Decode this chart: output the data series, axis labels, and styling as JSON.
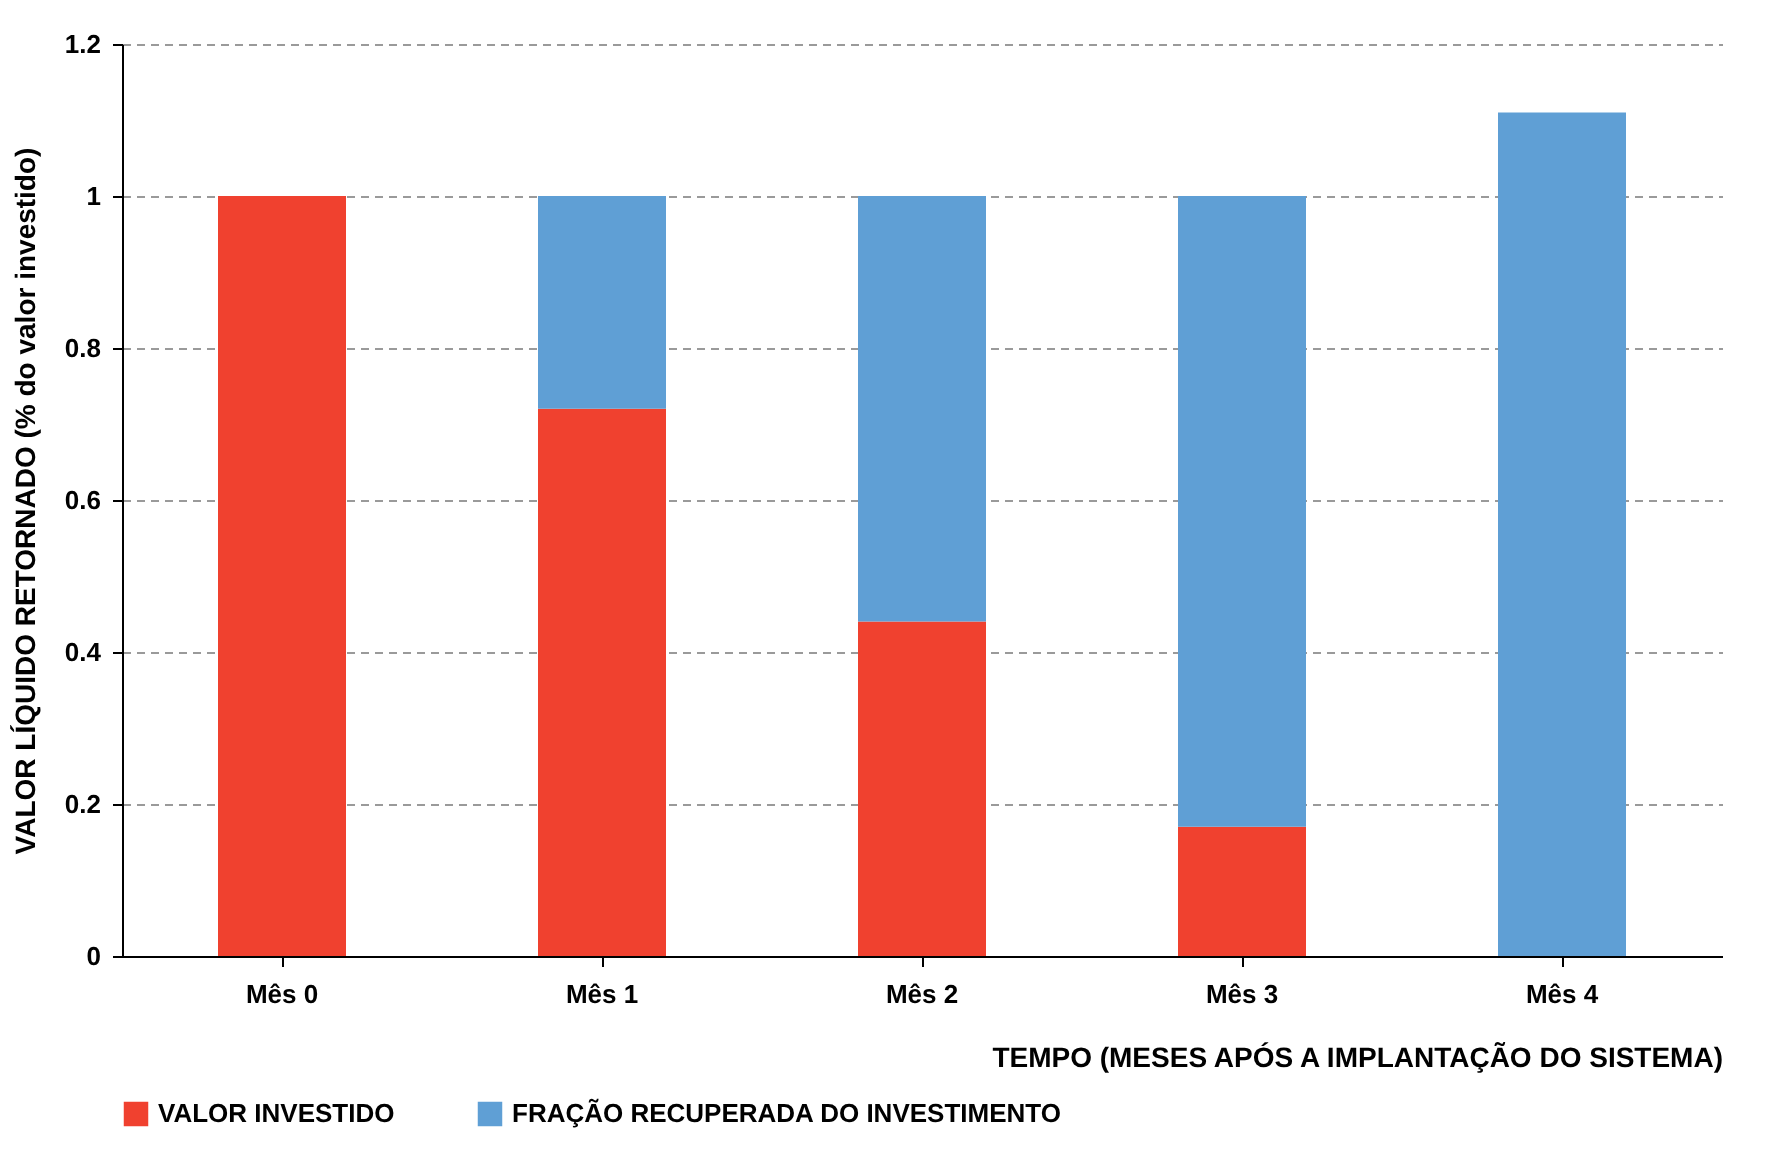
{
  "chart_data": {
    "type": "bar",
    "stacked": true,
    "xlabel": "TEMPO (MESES APÓS A IMPLANTAÇÃO DO SISTEMA)",
    "ylabel": "VALOR LÍQUIDO RETORNADO (% do valor investido)",
    "categories": [
      "Mês 0",
      "Mês 1",
      "Mês 2",
      "Mês 3",
      "Mês 4"
    ],
    "series": [
      {
        "name": "VALOR INVESTIDO",
        "color": "#f0412f",
        "values": [
          1,
          0.72,
          0.44,
          0.17,
          0
        ]
      },
      {
        "name": "FRAÇÃO RECUPERADA DO INVESTIMENTO",
        "color": "#5f9fd5",
        "values": [
          0,
          0.28,
          0.56,
          0.83,
          1.11
        ]
      }
    ],
    "ylim": [
      0,
      1.2
    ],
    "yticks": [
      0,
      0.2,
      0.4,
      0.6,
      0.8,
      1,
      1.2
    ],
    "grid": "y",
    "legend": "bottom"
  }
}
